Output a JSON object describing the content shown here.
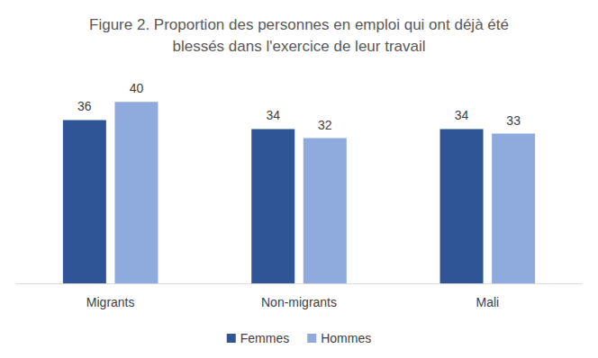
{
  "chart_data": {
    "type": "bar",
    "title": "Figure 2. Proportion des personnes en emploi qui ont déjà été\nblessés dans l'exercice de leur travail",
    "categories": [
      "Migrants",
      "Non-migrants",
      "Mali"
    ],
    "series": [
      {
        "name": "Femmes",
        "color": "#2f5597",
        "values": [
          36,
          34,
          34
        ]
      },
      {
        "name": "Hommes",
        "color": "#8faadc",
        "values": [
          40,
          32,
          33
        ]
      }
    ],
    "ylim": [
      0,
      45
    ],
    "yticks": [
      0,
      5,
      10,
      15,
      20,
      25,
      30,
      35,
      40,
      45
    ],
    "grid": false,
    "legend": "bottom",
    "data_labels": true,
    "tick_labels": "x"
  }
}
